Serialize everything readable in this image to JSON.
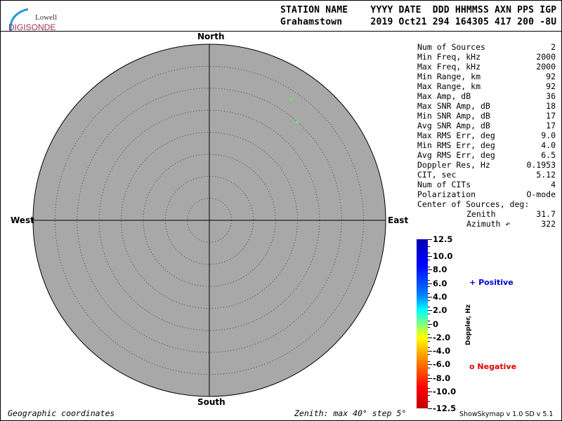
{
  "header": {
    "labels": "STATION NAME    YYYY DATE  DDD HHMMSS AXN PPS IGP",
    "values": "Grahamstown     2019 Oct21 294 164305 417 200 -8U"
  },
  "logo": {
    "line1": "Lowell",
    "line2": "DIGISONDE"
  },
  "skymap": {
    "directions": {
      "north": "North",
      "south": "South",
      "east": "East",
      "west": "West"
    },
    "zenith_max_deg": 40,
    "zenith_step_deg": 5,
    "background": "#a8a8a8",
    "sources": [
      {
        "marker": "plus",
        "zenith_deg": 33.1,
        "azimuth_deg": 34,
        "color": "#66ee66"
      },
      {
        "marker": "circle",
        "zenith_deg": 30.0,
        "azimuth_deg": 42,
        "color": "#66ee66"
      }
    ]
  },
  "params": [
    {
      "label": "Num of Sources",
      "value": "2"
    },
    {
      "label": "Min Freq, kHz",
      "value": "2000"
    },
    {
      "label": "Max Freq, kHz",
      "value": "2000"
    },
    {
      "label": "Min Range, km",
      "value": "92"
    },
    {
      "label": "Max Range, km",
      "value": "92"
    },
    {
      "label": "Max Amp, dB",
      "value": "36"
    },
    {
      "label": "Max SNR Amp, dB",
      "value": "18"
    },
    {
      "label": "Min SNR Amp, dB",
      "value": "17"
    },
    {
      "label": "Avg SNR Amp, dB",
      "value": "17"
    },
    {
      "label": "Max RMS Err, deg",
      "value": "9.0"
    },
    {
      "label": "Min RMS Err, deg",
      "value": "4.0"
    },
    {
      "label": "Avg RMS Err, deg",
      "value": "6.5"
    },
    {
      "label": "Doppler Res, Hz",
      "value": "0.1953"
    },
    {
      "label": "CIT, sec",
      "value": "5.12"
    },
    {
      "label": "Num of CITs",
      "value": "4"
    },
    {
      "label": "Polarization",
      "value": "O-mode"
    },
    {
      "label": "Center of Sources, deg:",
      "value": ""
    },
    {
      "label": "Zenith",
      "value": "31.7",
      "indent": true
    },
    {
      "label": "Azimuth ↶",
      "value": "322",
      "indent": true
    }
  ],
  "colorbar": {
    "title": "Doppler, Hz",
    "ticks": [
      "12.5",
      "10.0",
      "8.0",
      "6.0",
      "4.0",
      "2.0",
      "0",
      "-2.0",
      "-4.0",
      "-6.0",
      "-8.0",
      "-10.0",
      "-12.5"
    ],
    "tick_values": [
      12.5,
      10,
      8,
      6,
      4,
      2,
      0,
      -2,
      -4,
      -6,
      -8,
      -10,
      -12.5
    ]
  },
  "legend": {
    "positive": {
      "symbol": "+",
      "label": "Positive",
      "color": "#0000dd"
    },
    "negative": {
      "symbol": "o",
      "label": "Negative",
      "color": "#dd0000"
    }
  },
  "footer": {
    "coords": "Geographic coordinates",
    "zenith": "Zenith: max 40°  step 5°",
    "version": "ShowSkymap v 1.0   SD v 5.1"
  }
}
